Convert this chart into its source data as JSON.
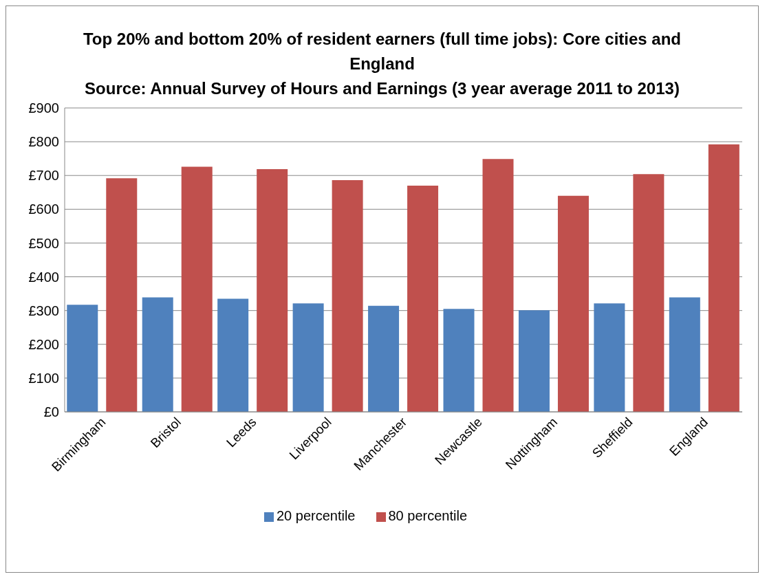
{
  "chart_data": {
    "type": "bar",
    "title": "Top 20% and bottom 20% of resident earners (full time jobs): Core cities and England",
    "annotations": [
      "Source: Annual Survey of Hours and Earnings (3 year average 2011 to 2013)"
    ],
    "categories": [
      "Birmingham",
      "Bristol",
      "Leeds",
      "Liverpool",
      "Manchester",
      "Newcastle",
      "Nottingham",
      "Sheffield",
      "England"
    ],
    "series": [
      {
        "name": "20 percentile",
        "color": "#4f81bd",
        "values": [
          317,
          339,
          335,
          321,
          314,
          305,
          301,
          321,
          339
        ]
      },
      {
        "name": "80 percentile",
        "color": "#c0504d",
        "values": [
          692,
          726,
          719,
          686,
          670,
          749,
          640,
          704,
          792
        ]
      }
    ],
    "ylim": [
      0,
      900
    ],
    "yticks": [
      {
        "value": 0,
        "label": "£0"
      },
      {
        "value": 100,
        "label": "£100"
      },
      {
        "value": 200,
        "label": "£200"
      },
      {
        "value": 300,
        "label": "£300"
      },
      {
        "value": 400,
        "label": "£400"
      },
      {
        "value": 500,
        "label": "£500"
      },
      {
        "value": 600,
        "label": "£600"
      },
      {
        "value": 700,
        "label": "£700"
      },
      {
        "value": 800,
        "label": "£800"
      },
      {
        "value": 900,
        "label": "£900"
      }
    ],
    "grid": "y",
    "legend": "bottom"
  }
}
